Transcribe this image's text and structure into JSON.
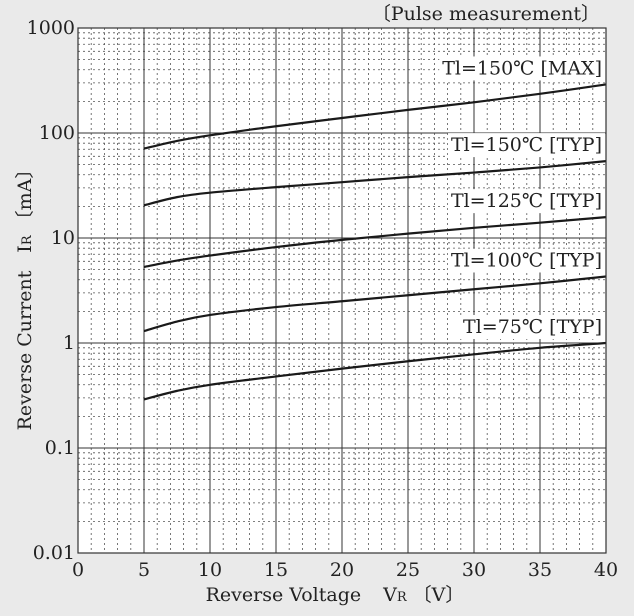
{
  "chart_data": {
    "type": "line",
    "note": "〔Pulse measurement〕",
    "xlabel": "Reverse Voltage",
    "xlabel_symbol": "V",
    "xlabel_sub": "R",
    "xlabel_unit": "〔V〕",
    "ylabel": "Reverse Current",
    "ylabel_symbol": "I",
    "ylabel_sub": "R",
    "ylabel_unit": "〔mA〕",
    "y_scale": "log",
    "xlim": [
      0,
      40
    ],
    "ylim": [
      0.01,
      1000
    ],
    "grid": true,
    "x_ticks": [
      {
        "v": 0,
        "label": "0"
      },
      {
        "v": 5,
        "label": "5"
      },
      {
        "v": 10,
        "label": "10"
      },
      {
        "v": 15,
        "label": "15"
      },
      {
        "v": 20,
        "label": "20"
      },
      {
        "v": 25,
        "label": "25"
      },
      {
        "v": 30,
        "label": "30"
      },
      {
        "v": 35,
        "label": "35"
      },
      {
        "v": 40,
        "label": "40"
      }
    ],
    "y_ticks": [
      {
        "v": 0.01,
        "label": "0.01"
      },
      {
        "v": 0.1,
        "label": "0.1"
      },
      {
        "v": 1,
        "label": "1"
      },
      {
        "v": 10,
        "label": "10"
      },
      {
        "v": 100,
        "label": "100"
      },
      {
        "v": 1000,
        "label": "1000"
      }
    ],
    "series": [
      {
        "name": "Tl=150℃ [MAX]",
        "x": [
          5,
          7.5,
          10,
          15,
          20,
          25,
          30,
          35,
          40
        ],
        "y": [
          71,
          84,
          95,
          116,
          139,
          166,
          196,
          236,
          290
        ]
      },
      {
        "name": "Tl=150℃ [TYP]",
        "x": [
          5,
          7.5,
          10,
          15,
          20,
          25,
          30,
          35,
          40
        ],
        "y": [
          20.5,
          24.5,
          27,
          30.5,
          34,
          38,
          42,
          47,
          54
        ]
      },
      {
        "name": "Tl=125℃ [TYP]",
        "x": [
          5,
          7.5,
          10,
          15,
          20,
          25,
          30,
          35,
          40
        ],
        "y": [
          5.3,
          6.1,
          6.8,
          8.2,
          9.6,
          11,
          12.5,
          14,
          15.8
        ]
      },
      {
        "name": "Tl=100℃ [TYP]",
        "x": [
          5,
          7.5,
          10,
          15,
          20,
          25,
          30,
          35,
          40
        ],
        "y": [
          1.3,
          1.6,
          1.85,
          2.2,
          2.5,
          2.85,
          3.25,
          3.7,
          4.3
        ]
      },
      {
        "name": "Tl=75℃ [TYP]",
        "x": [
          5,
          7.5,
          10,
          15,
          20,
          25,
          30,
          35,
          40
        ],
        "y": [
          0.29,
          0.35,
          0.4,
          0.48,
          0.57,
          0.67,
          0.78,
          0.9,
          1.0
        ]
      }
    ]
  }
}
